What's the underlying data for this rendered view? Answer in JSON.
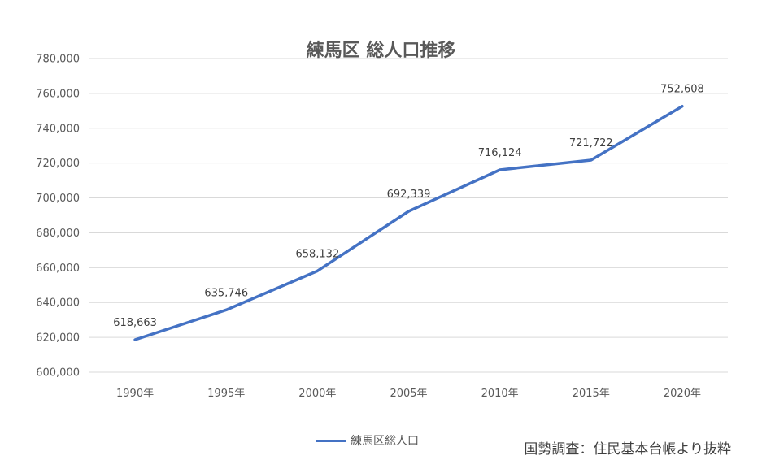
{
  "chart_data": {
    "type": "line",
    "title": "練馬区 総人口推移",
    "categories": [
      "1990年",
      "1995年",
      "2000年",
      "2005年",
      "2010年",
      "2015年",
      "2020年"
    ],
    "series": [
      {
        "name": "練馬区総人口",
        "values": [
          618663,
          635746,
          658132,
          692339,
          716124,
          721722,
          752608
        ],
        "data_labels": [
          "618,663",
          "635,746",
          "658,132",
          "692,339",
          "716,124",
          "721,722",
          "752,608"
        ],
        "color": "#4472C4"
      }
    ],
    "ylim": [
      600000,
      780000
    ],
    "yticks": [
      600000,
      620000,
      640000,
      660000,
      680000,
      700000,
      720000,
      740000,
      760000,
      780000
    ],
    "ytick_labels": [
      "600,000",
      "620,000",
      "640,000",
      "660,000",
      "680,000",
      "700,000",
      "720,000",
      "740,000",
      "760,000",
      "780,000"
    ],
    "grid": true,
    "legend_position": "bottom"
  },
  "source_note": "国勢調査：住民基本台帳より抜粋",
  "colors": {
    "gridline": "#D9D9D9",
    "axis_text": "#595959"
  }
}
